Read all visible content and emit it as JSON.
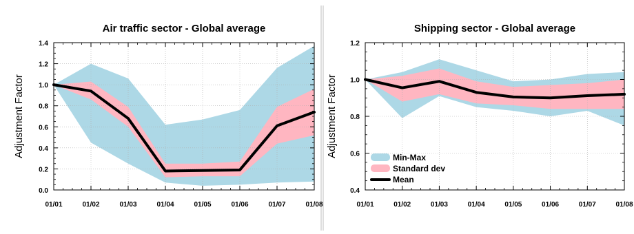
{
  "chart_data": [
    {
      "type": "area",
      "title": "Air traffic sector - Global average",
      "xlabel": "",
      "ylabel": "Adjustment Factor",
      "categories": [
        "01/01",
        "01/02",
        "01/03",
        "01/04",
        "01/05",
        "01/06",
        "01/07",
        "01/08"
      ],
      "ylim": [
        0,
        1.4
      ],
      "yticks": [
        "0.0",
        "0.2",
        "0.4",
        "0.6",
        "0.8",
        "1.0",
        "1.2",
        "1.4"
      ],
      "ytick_values": [
        0,
        0.2,
        0.4,
        0.6,
        0.8,
        1.0,
        1.2,
        1.4
      ],
      "grid": true,
      "series": [
        {
          "name": "Min-Max",
          "kind": "band",
          "color": "#add8e6",
          "low": [
            1.0,
            0.45,
            0.25,
            0.07,
            0.04,
            0.05,
            0.07,
            0.08
          ],
          "high": [
            1.0,
            1.2,
            1.06,
            0.62,
            0.67,
            0.76,
            1.16,
            1.37
          ]
        },
        {
          "name": "Standard dev",
          "kind": "band",
          "color": "#ffb6c1",
          "low": [
            1.0,
            0.86,
            0.6,
            0.12,
            0.13,
            0.13,
            0.44,
            0.52
          ],
          "high": [
            1.0,
            1.03,
            0.79,
            0.25,
            0.25,
            0.27,
            0.79,
            0.96
          ]
        },
        {
          "name": "Mean",
          "kind": "line",
          "color": "#000000",
          "values": [
            1.0,
            0.94,
            0.68,
            0.18,
            0.185,
            0.19,
            0.61,
            0.74
          ]
        }
      ]
    },
    {
      "type": "area",
      "title": "Shipping sector - Global average",
      "xlabel": "",
      "ylabel": "Adjustment Factor",
      "categories": [
        "01/01",
        "01/02",
        "01/03",
        "01/04",
        "01/05",
        "01/06",
        "01/07",
        "01/08"
      ],
      "ylim": [
        0.4,
        1.2
      ],
      "yticks": [
        "0.4",
        "0.6",
        "0.8",
        "1.0",
        "1.2"
      ],
      "ytick_values": [
        0.4,
        0.6,
        0.8,
        1.0,
        1.2
      ],
      "grid": true,
      "legend_position": "bottom-left",
      "legend": [
        "Min-Max",
        "Standard dev",
        "Mean"
      ],
      "series": [
        {
          "name": "Min-Max",
          "kind": "band",
          "color": "#add8e6",
          "low": [
            1.0,
            0.79,
            0.91,
            0.85,
            0.83,
            0.8,
            0.83,
            0.75
          ],
          "high": [
            1.0,
            1.04,
            1.11,
            1.05,
            0.99,
            1.0,
            1.03,
            1.04
          ]
        },
        {
          "name": "Standard dev",
          "kind": "band",
          "color": "#ffb6c1",
          "low": [
            1.0,
            0.88,
            0.92,
            0.87,
            0.86,
            0.84,
            0.84,
            0.84
          ],
          "high": [
            1.0,
            1.02,
            1.06,
            0.99,
            0.96,
            0.97,
            0.98,
            1.0
          ]
        },
        {
          "name": "Mean",
          "kind": "line",
          "color": "#000000",
          "values": [
            1.0,
            0.955,
            0.99,
            0.93,
            0.905,
            0.9,
            0.912,
            0.92
          ]
        }
      ]
    }
  ]
}
